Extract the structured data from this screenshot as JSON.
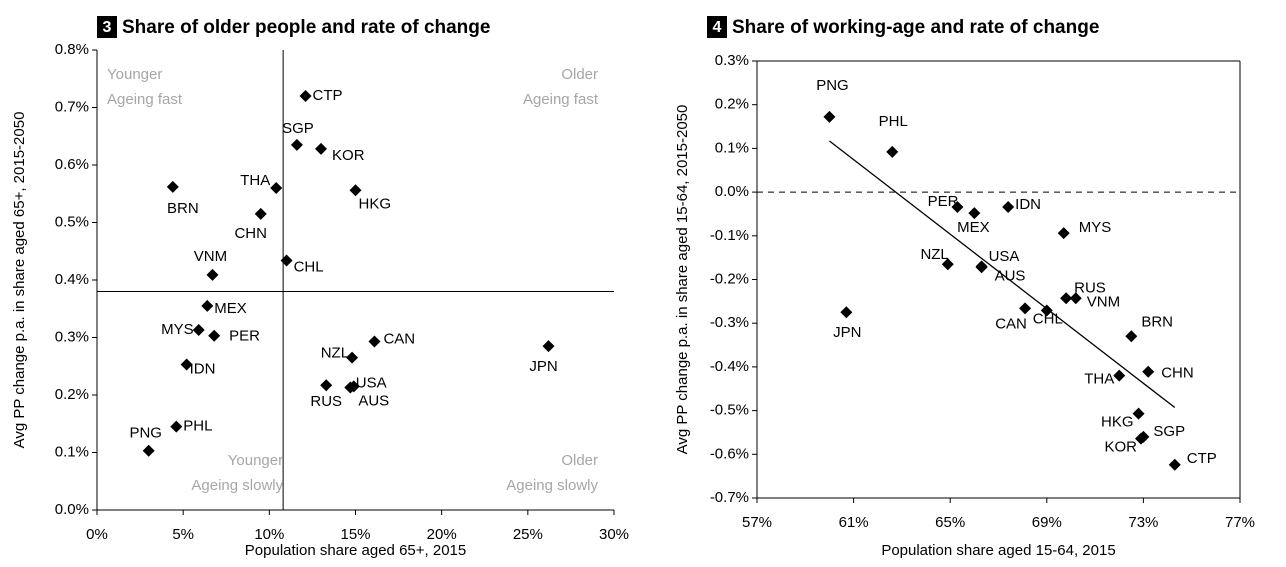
{
  "chart_data": [
    {
      "type": "scatter",
      "badge": "3",
      "title": "Share of older people and rate of change",
      "x_label": "Population share aged 65+, 2015",
      "y_label": "Avg PP change p.a. in share aged 65+, 2015-2050",
      "xlim": [
        0,
        30
      ],
      "ylim": [
        0,
        0.8
      ],
      "xticks": [
        {
          "value": 0,
          "label": "0%"
        },
        {
          "value": 5,
          "label": "5%"
        },
        {
          "value": 10,
          "label": "10%"
        },
        {
          "value": 15,
          "label": "15%"
        },
        {
          "value": 20,
          "label": "20%"
        },
        {
          "value": 25,
          "label": "25%"
        },
        {
          "value": 30,
          "label": "30%"
        }
      ],
      "yticks": [
        {
          "value": 0,
          "label": "0.0%"
        },
        {
          "value": 0.1,
          "label": "0.1%"
        },
        {
          "value": 0.2,
          "label": "0.2%"
        },
        {
          "value": 0.3,
          "label": "0.3%"
        },
        {
          "value": 0.4,
          "label": "0.4%"
        },
        {
          "value": 0.5,
          "label": "0.5%"
        },
        {
          "value": 0.6,
          "label": "0.6%"
        },
        {
          "value": 0.7,
          "label": "0.7%"
        },
        {
          "value": 0.8,
          "label": "0.8%"
        }
      ],
      "color": "#000000",
      "labels": [
        "CTP",
        "SGP",
        "KOR",
        "THA",
        "BRN",
        "HKG",
        "CHN",
        "CHL",
        "VNM",
        "MEX",
        "MYS",
        "PER",
        "CAN",
        "NZL",
        "JPN",
        "IDN",
        "USA",
        "RUS",
        "AUS",
        "PHL",
        "PNG"
      ],
      "x": [
        12.1,
        11.6,
        13.0,
        10.4,
        4.4,
        15.0,
        9.5,
        11.0,
        6.7,
        6.4,
        5.9,
        6.8,
        16.1,
        14.8,
        26.2,
        5.2,
        14.9,
        13.3,
        14.7,
        4.6,
        3.0
      ],
      "values": [
        0.72,
        0.635,
        0.628,
        0.56,
        0.562,
        0.556,
        0.515,
        0.434,
        0.409,
        0.355,
        0.313,
        0.303,
        0.293,
        0.265,
        0.285,
        0.253,
        0.215,
        0.217,
        0.213,
        0.145,
        0.103
      ],
      "vlines": [
        10.8
      ],
      "hlines": [
        0.38
      ],
      "annotations": [
        {
          "text": [
            "Younger",
            "Ageing fast"
          ],
          "corner": "top-left"
        },
        {
          "text": [
            "Older",
            "Ageing fast"
          ],
          "corner": "top-right"
        },
        {
          "text": [
            "Younger",
            "Ageing slowly"
          ],
          "corner": "bottom-left"
        },
        {
          "text": [
            "Older",
            "Ageing slowly"
          ],
          "corner": "bottom-right"
        }
      ]
    },
    {
      "type": "scatter",
      "badge": "4",
      "title": "Share of working-age and rate of change",
      "x_label": "Population share aged 15-64, 2015",
      "y_label": "Avg PP change p.a. in share aged 15-64, 2015-2050",
      "xlim": [
        57,
        77
      ],
      "ylim": [
        -0.7,
        0.3
      ],
      "xticks": [
        {
          "value": 57,
          "label": "57%"
        },
        {
          "value": 61,
          "label": "61%"
        },
        {
          "value": 65,
          "label": "65%"
        },
        {
          "value": 69,
          "label": "69%"
        },
        {
          "value": 73,
          "label": "73%"
        },
        {
          "value": 77,
          "label": "77%"
        }
      ],
      "yticks": [
        {
          "value": 0.3,
          "label": "0.3%"
        },
        {
          "value": 0.2,
          "label": "0.2%"
        },
        {
          "value": 0.1,
          "label": "0.1%"
        },
        {
          "value": 0,
          "label": "0.0%"
        },
        {
          "value": -0.1,
          "label": "-0.1%"
        },
        {
          "value": -0.2,
          "label": "-0.2%"
        },
        {
          "value": -0.3,
          "label": "-0.3%"
        },
        {
          "value": -0.4,
          "label": "-0.4%"
        },
        {
          "value": -0.5,
          "label": "-0.5%"
        },
        {
          "value": -0.6,
          "label": "-0.6%"
        },
        {
          "value": -0.7,
          "label": "-0.7%"
        }
      ],
      "color": "#000000",
      "labels": [
        "PNG",
        "PHL",
        "PER",
        "MEX",
        "IDN",
        "MYS",
        "NZL",
        "USA",
        "AUS",
        "JPN",
        "RUS",
        "VNM",
        "CAN",
        "CHL",
        "BRN",
        "THA",
        "CHN",
        "HKG",
        "SGP",
        "KOR",
        "CTP"
      ],
      "x": [
        60.0,
        62.6,
        65.3,
        66.0,
        67.4,
        69.7,
        64.9,
        66.3,
        66.3,
        60.7,
        69.8,
        70.2,
        68.1,
        69.0,
        72.5,
        72.0,
        73.2,
        72.8,
        73.0,
        72.9,
        74.3
      ],
      "values": [
        0.172,
        0.092,
        -0.034,
        -0.048,
        -0.034,
        -0.094,
        -0.165,
        -0.172,
        -0.17,
        -0.275,
        -0.243,
        -0.243,
        -0.266,
        -0.271,
        -0.33,
        -0.42,
        -0.411,
        -0.507,
        -0.56,
        -0.564,
        -0.624
      ],
      "hlines": [
        0
      ],
      "trend_line": {
        "x": [
          60.0,
          74.3
        ],
        "y": [
          0.117,
          -0.493
        ]
      }
    }
  ]
}
